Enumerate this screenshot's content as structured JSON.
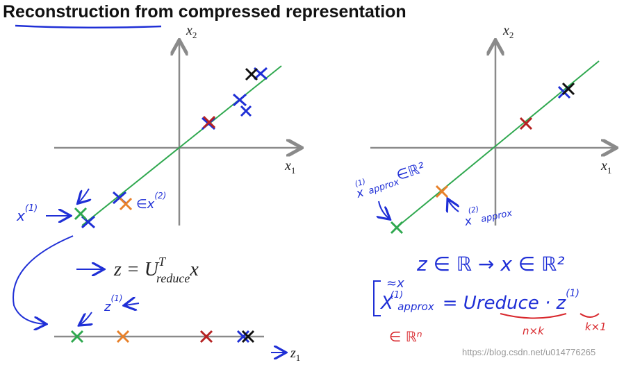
{
  "header": {
    "title": "Reconstruction from compressed representation"
  },
  "left_plot": {
    "x_axis": {
      "base": "x",
      "sub": "1"
    },
    "y_axis": {
      "base": "x",
      "sub": "2"
    },
    "annotations": {
      "x1": "x",
      "x1_sup": "(1)",
      "x2": "∈x",
      "x2_sup": "(2)"
    }
  },
  "equation": {
    "lhs": "z = U",
    "sup": "T",
    "sub": "reduce",
    "rhs": "x"
  },
  "z_axis": {
    "base": "z",
    "sub": "1",
    "z1": "z",
    "z1_sup": "(1)"
  },
  "right_plot": {
    "x_axis": {
      "base": "x",
      "sub": "1"
    },
    "y_axis": {
      "base": "x",
      "sub": "2"
    },
    "annotations": {
      "a1": "x",
      "a1_sup": "(1)",
      "a1_sub": "approx",
      "a1_set": "∈ℝ²",
      "a2": "x",
      "a2_sup": "(2)",
      "a2_sub": "approx"
    }
  },
  "notes": {
    "mapping": "z ∈ ℝ → x ∈ ℝ²",
    "approx": "≈x",
    "formula_lhs": "X",
    "formula_sup": "(1)",
    "formula_sub": "approx",
    "formula_rhs": "= Ureduce · z",
    "formula_rhs_sup": "(1)",
    "rn": "∈ ℝⁿ",
    "nk": "n×k",
    "k1": "k×1"
  },
  "watermark": "https://blog.csdn.net/u014776265"
}
